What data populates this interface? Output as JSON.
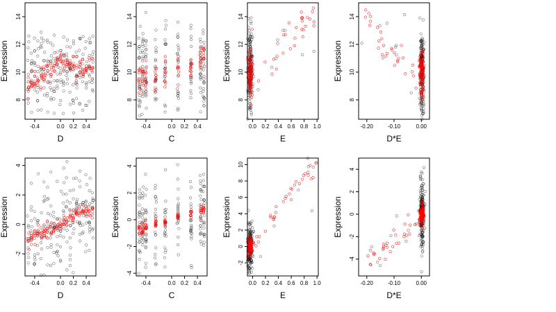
{
  "colors": {
    "black_points": "#000000",
    "red_points": "#ff0000",
    "background": "#ffffff"
  },
  "chart_data": [
    {
      "type": "scatter",
      "xlabel": "D",
      "ylabel": "Expression",
      "xlim": [
        -0.55,
        0.55
      ],
      "ylim": [
        6.6,
        15.0
      ],
      "xticks": [
        -0.4,
        0.0,
        0.2,
        0.4
      ],
      "xticklabels": [
        "-0.4",
        "0.0",
        "0.2",
        "0.4"
      ],
      "yticks": [
        8,
        10,
        12,
        14
      ],
      "yticklabels": [
        "8",
        "10",
        "12",
        "14"
      ],
      "groups_x": [
        -0.5,
        -0.45,
        -0.4,
        -0.35,
        -0.3,
        -0.25,
        -0.2,
        -0.15,
        -0.1,
        -0.05,
        0.0,
        0.05,
        0.1,
        0.15,
        0.2,
        0.25,
        0.3,
        0.35,
        0.4,
        0.45,
        0.5
      ],
      "black": {
        "center": 10.0,
        "spread": 1.7,
        "trend": [
          0,
          0,
          0
        ],
        "n_per_group": 10
      },
      "red": {
        "trend": [
          9.0,
          9.8,
          10.9,
          10.3,
          10.3
        ],
        "spread": 0.4,
        "n_per_group": 6
      }
    },
    {
      "type": "scatter",
      "xlabel": "C",
      "ylabel": "Expression",
      "xlim": [
        -0.55,
        0.55
      ],
      "ylim": [
        6.6,
        15.0
      ],
      "xticks": [
        -0.4,
        0.0,
        0.2,
        0.4
      ],
      "xticklabels": [
        "-0.4",
        "0.0",
        "0.2",
        "0.4"
      ],
      "yticks": [
        8,
        10,
        12,
        14
      ],
      "yticklabels": [
        "8",
        "10",
        "12",
        "14"
      ],
      "groups_x": [
        -0.5,
        -0.45,
        -0.4,
        -0.25,
        -0.1,
        0.1,
        0.3,
        0.45,
        0.5
      ],
      "black": {
        "center": 10.0,
        "spread": 1.7,
        "trend": [
          0,
          0,
          0
        ],
        "n_per_group": 22
      },
      "red": {
        "trend": [
          9.5,
          9.8,
          10.0,
          10.6,
          11.0
        ],
        "spread": 0.6,
        "n_per_group": 10
      }
    },
    {
      "type": "scatter",
      "xlabel": "E",
      "ylabel": "Expression",
      "xlim": [
        -0.08,
        1.02
      ],
      "ylim": [
        6.6,
        15.0
      ],
      "xticks": [
        0.0,
        0.2,
        0.4,
        0.6,
        0.8,
        1.0
      ],
      "xticklabels": [
        "0.0",
        "0.2",
        "0.4",
        "0.6",
        "0.8",
        "1.0"
      ],
      "yticks": [
        8,
        10,
        12,
        14
      ],
      "yticklabels": [
        "8",
        "10",
        "12",
        "14"
      ],
      "cluster": {
        "x_center": -0.04,
        "x_spread": 0.02,
        "n": 180
      },
      "black": {
        "center": 10.0,
        "spread": 1.6
      },
      "red": {
        "center": 10.0,
        "spread": 0.9
      },
      "tail": {
        "x_range": [
          0.05,
          1.0
        ],
        "n": 30,
        "y_from": 9.5,
        "y_to": 14.5
      }
    },
    {
      "type": "scatter",
      "xlabel": "D*E",
      "ylabel": "Expression",
      "xlim": [
        -0.23,
        0.03
      ],
      "ylim": [
        6.6,
        15.0
      ],
      "xticks": [
        -0.2,
        -0.1,
        0.0
      ],
      "xticklabels": [
        "-0.20",
        "-0.10",
        "0.00"
      ],
      "yticks": [
        8,
        10,
        12,
        14
      ],
      "yticklabels": [
        "8",
        "10",
        "12",
        "14"
      ],
      "cluster": {
        "x_center": 0.002,
        "x_spread": 0.004,
        "n": 200
      },
      "black": {
        "center": 10.0,
        "spread": 1.7
      },
      "red": {
        "center": 10.0,
        "spread": 0.9
      },
      "tail": {
        "x_range": [
          -0.21,
          -0.01
        ],
        "n": 30,
        "y_from": 14.0,
        "y_to": 9.5
      }
    },
    {
      "type": "scatter",
      "xlabel": "D",
      "ylabel": "Expression",
      "xlim": [
        -0.55,
        0.55
      ],
      "ylim": [
        -3.5,
        4.5
      ],
      "xticks": [
        -0.4,
        0.0,
        0.2,
        0.4
      ],
      "xticklabels": [
        "-0.4",
        "0.0",
        "0.2",
        "0.4"
      ],
      "yticks": [
        -2,
        0,
        2,
        4
      ],
      "yticklabels": [
        "-2",
        "0",
        "2",
        "4"
      ],
      "groups_x": [
        -0.5,
        -0.45,
        -0.4,
        -0.35,
        -0.3,
        -0.25,
        -0.2,
        -0.15,
        -0.1,
        -0.05,
        0.0,
        0.05,
        0.1,
        0.15,
        0.2,
        0.25,
        0.3,
        0.35,
        0.4,
        0.45,
        0.5
      ],
      "black": {
        "center": 0.0,
        "spread": 1.6,
        "trend": [
          -1.0,
          0,
          1.2
        ],
        "n_per_group": 10
      },
      "red": {
        "trend": [
          -1.0,
          -0.5,
          0.0,
          0.6,
          1.1
        ],
        "spread": 0.25,
        "n_per_group": 6
      }
    },
    {
      "type": "scatter",
      "xlabel": "C",
      "ylabel": "Expression",
      "xlim": [
        -0.55,
        0.55
      ],
      "ylim": [
        -4.2,
        4.6
      ],
      "xticks": [
        -0.4,
        0.0,
        0.2,
        0.4
      ],
      "xticklabels": [
        "-0.4",
        "0.0",
        "0.2",
        "0.4"
      ],
      "yticks": [
        -4,
        -2,
        0,
        2,
        4
      ],
      "yticklabels": [
        "-4",
        "-2",
        "0",
        "2",
        "4"
      ],
      "groups_x": [
        -0.5,
        -0.45,
        -0.4,
        -0.25,
        -0.1,
        0.1,
        0.3,
        0.45,
        0.5
      ],
      "black": {
        "center": 0.0,
        "spread": 1.6,
        "trend": [
          -0.5,
          0,
          0.6
        ],
        "n_per_group": 22
      },
      "red": {
        "trend": [
          -0.6,
          -0.3,
          0.0,
          0.4,
          0.7
        ],
        "spread": 0.25,
        "n_per_group": 10
      }
    },
    {
      "type": "scatter",
      "xlabel": "E",
      "ylabel": "Expression",
      "xlim": [
        -0.08,
        1.02
      ],
      "ylim": [
        -3.6,
        10.8
      ],
      "xticks": [
        0.0,
        0.2,
        0.4,
        0.6,
        0.8,
        1.0
      ],
      "xticklabels": [
        "0.0",
        "0.2",
        "0.4",
        "0.6",
        "0.8",
        "1.0"
      ],
      "yticks": [
        -2,
        0,
        2,
        4,
        6,
        8,
        10
      ],
      "yticklabels": [
        "-2",
        "0",
        "2",
        "4",
        "6",
        "8",
        "10"
      ],
      "cluster": {
        "x_center": -0.04,
        "x_spread": 0.02,
        "n": 180
      },
      "black": {
        "center": 0.0,
        "spread": 1.6
      },
      "red": {
        "center": 0.0,
        "spread": 0.5
      },
      "tail": {
        "x_range": [
          0.05,
          1.0
        ],
        "n": 30,
        "y_from": 1.0,
        "y_to": 10.3
      }
    },
    {
      "type": "scatter",
      "xlabel": "D*E",
      "ylabel": "Expression",
      "xlim": [
        -0.23,
        0.03
      ],
      "ylim": [
        -5.5,
        5.0
      ],
      "xticks": [
        -0.2,
        -0.1,
        0.0
      ],
      "xticklabels": [
        "-0.20",
        "-0.10",
        "0.00"
      ],
      "yticks": [
        -4,
        -2,
        0,
        2,
        4
      ],
      "yticklabels": [
        "-4",
        "-2",
        "0",
        "2",
        "4"
      ],
      "cluster": {
        "x_center": 0.002,
        "x_spread": 0.004,
        "n": 200
      },
      "black": {
        "center": 0.0,
        "spread": 1.6
      },
      "red": {
        "center": 0.0,
        "spread": 0.4
      },
      "tail": {
        "x_range": [
          -0.21,
          -0.01
        ],
        "n": 30,
        "y_from": -4.7,
        "y_to": -0.5
      }
    }
  ]
}
